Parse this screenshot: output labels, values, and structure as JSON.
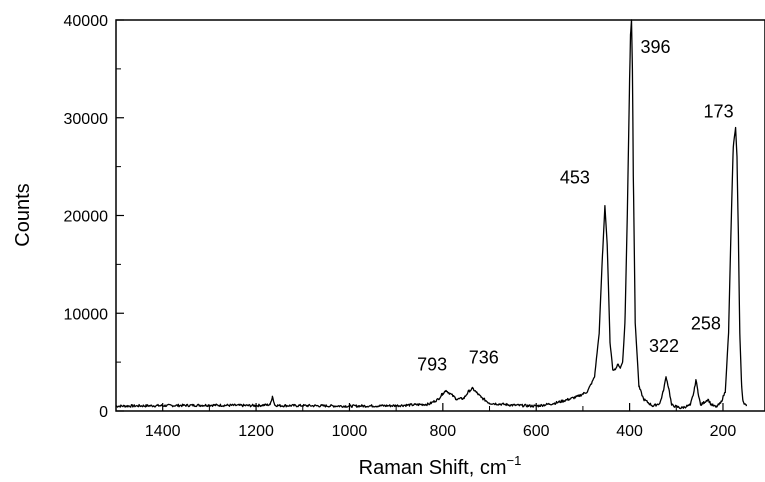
{
  "chart_data": {
    "type": "line",
    "title": "",
    "xlabel": "Raman Shift, cm",
    "xlabel_superscript": "−1",
    "ylabel": "Counts",
    "xlim": [
      1500,
      110
    ],
    "ylim": [
      0,
      40000
    ],
    "x_ticks": [
      1400,
      1200,
      1000,
      800,
      600,
      400,
      200
    ],
    "y_ticks": [
      0,
      10000,
      20000,
      30000,
      40000
    ],
    "grid": false,
    "legend": "none",
    "line_color": "#000000",
    "series": [
      {
        "name": "",
        "x": [
          1500,
          1400,
          1300,
          1200,
          1170,
          1165,
          1160,
          1150,
          1100,
          1000,
          900,
          830,
          810,
          800,
          793,
          785,
          770,
          755,
          745,
          736,
          728,
          718,
          700,
          650,
          600,
          560,
          530,
          510,
          490,
          475,
          465,
          458,
          453,
          448,
          442,
          436,
          430,
          425,
          420,
          415,
          410,
          405,
          400,
          398,
          396,
          394,
          392,
          388,
          380,
          370,
          350,
          335,
          328,
          322,
          316,
          310,
          290,
          270,
          262,
          258,
          254,
          248,
          240,
          232,
          226,
          215,
          205,
          195,
          188,
          182,
          178,
          173,
          170,
          167,
          164,
          160,
          157,
          150
        ],
        "values": [
          500,
          550,
          600,
          550,
          650,
          1500,
          600,
          550,
          550,
          500,
          550,
          700,
          1200,
          1800,
          2100,
          1800,
          1200,
          1300,
          2000,
          2300,
          1900,
          1400,
          800,
          600,
          500,
          800,
          1200,
          1500,
          2000,
          3500,
          8000,
          16000,
          21000,
          17000,
          7000,
          4200,
          4300,
          4800,
          4400,
          5000,
          9000,
          20000,
          34000,
          38500,
          40000,
          35000,
          24000,
          9000,
          2500,
          1200,
          500,
          800,
          2000,
          3500,
          2300,
          600,
          300,
          600,
          2000,
          3200,
          2100,
          600,
          900,
          1200,
          700,
          400,
          800,
          2000,
          8000,
          20000,
          27000,
          29000,
          26000,
          18000,
          8000,
          2500,
          1000,
          500
        ]
      }
    ],
    "annotations": [
      {
        "text": "793",
        "x": 793,
        "y": 2100
      },
      {
        "text": "736",
        "x": 736,
        "y": 2300
      },
      {
        "text": "453",
        "x": 453,
        "y": 21000
      },
      {
        "text": "396",
        "x": 396,
        "y": 40000
      },
      {
        "text": "322",
        "x": 322,
        "y": 3500
      },
      {
        "text": "258",
        "x": 258,
        "y": 3200
      },
      {
        "text": "173",
        "x": 173,
        "y": 29000
      }
    ]
  }
}
